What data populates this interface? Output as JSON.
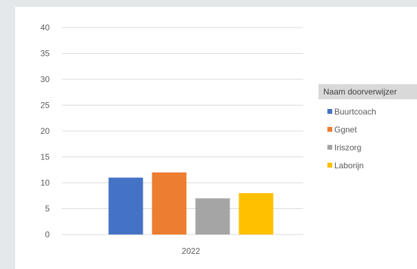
{
  "chart_data": {
    "type": "bar",
    "categories": [
      "2022"
    ],
    "series": [
      {
        "name": "Buurtcoach",
        "values": [
          11
        ],
        "color": "#4472c4"
      },
      {
        "name": "Ggnet",
        "values": [
          12
        ],
        "color": "#ed7d31"
      },
      {
        "name": "Iriszorg",
        "values": [
          7
        ],
        "color": "#a5a5a5"
      },
      {
        "name": "Laborijn",
        "values": [
          8
        ],
        "color": "#ffc000"
      }
    ],
    "ylim": [
      0,
      40
    ],
    "yticks": [
      0,
      5,
      10,
      15,
      20,
      25,
      30,
      35,
      40
    ],
    "grid": true,
    "legend_position": "right",
    "legend_title": "Naam doorverwijzer"
  }
}
